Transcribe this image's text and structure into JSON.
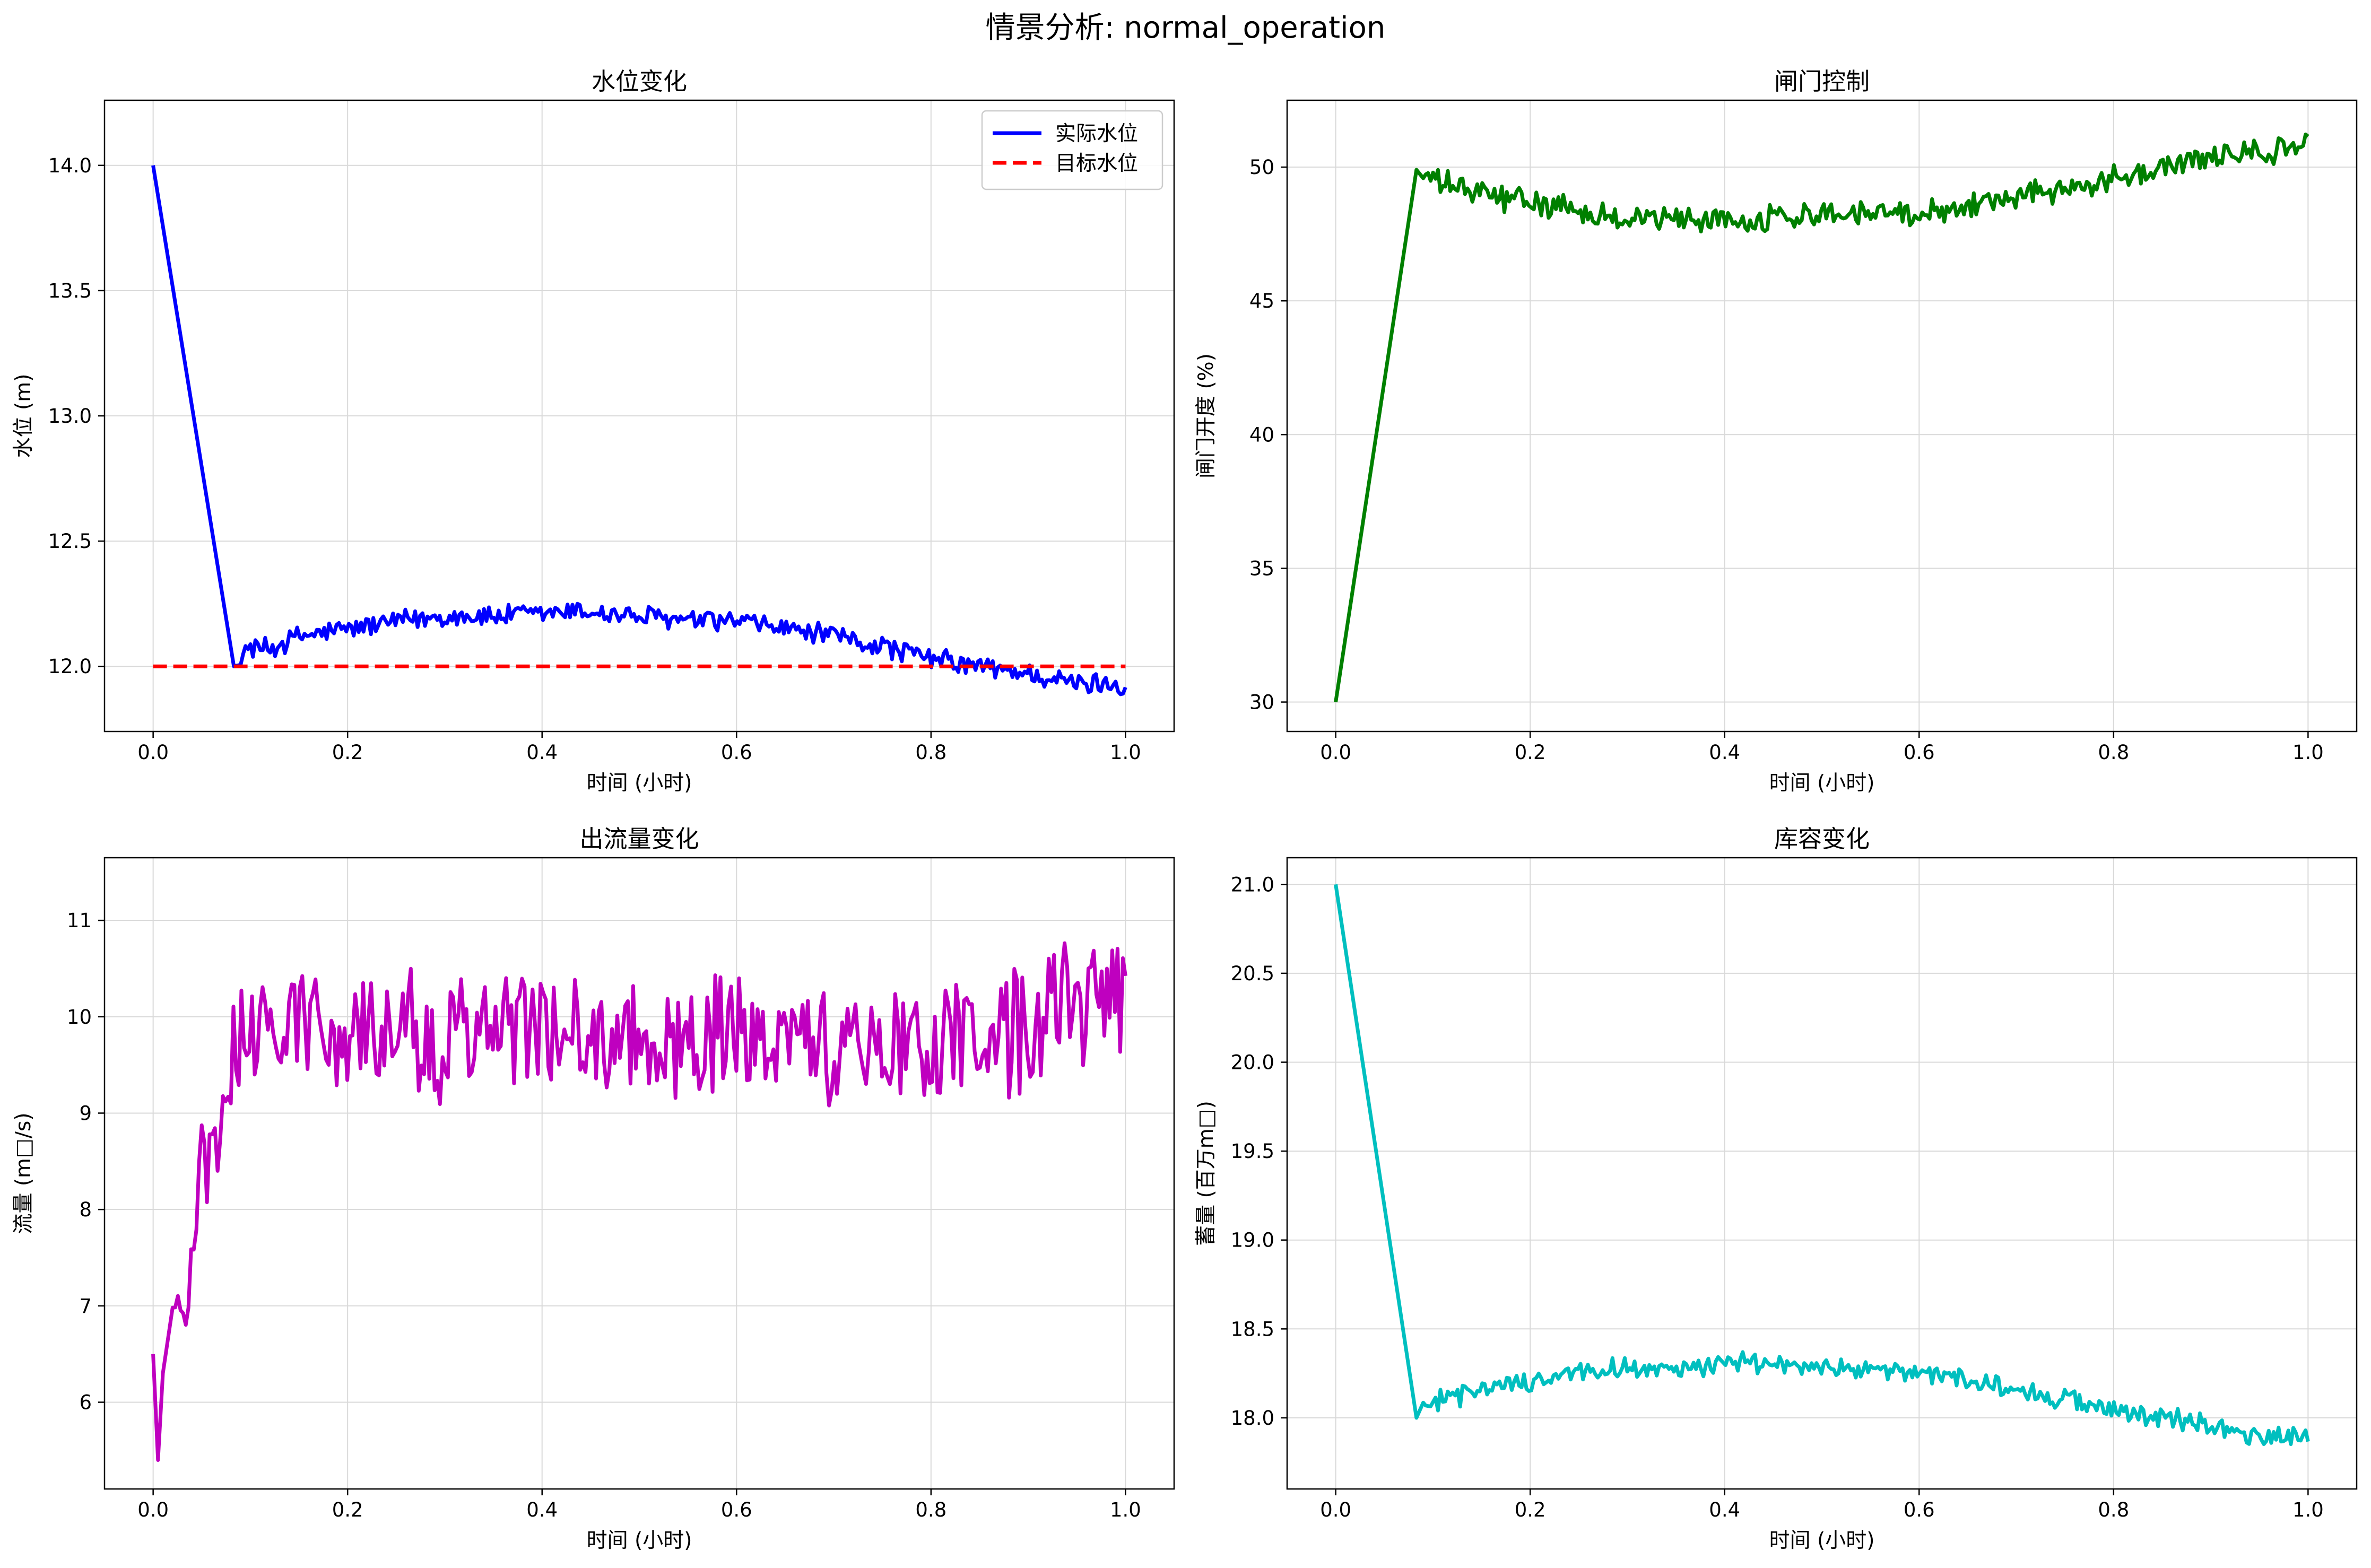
{
  "figure": {
    "suptitle": "情景分析: normal_operation"
  },
  "chart_data": [
    {
      "type": "line",
      "title": "水位变化",
      "xlabel": "时间 (小时)",
      "ylabel": "水位 (m)",
      "xlim": [
        -0.05,
        1.05
      ],
      "ylim": [
        11.74,
        14.26
      ],
      "xticks": [
        0.0,
        0.2,
        0.4,
        0.6,
        0.8,
        1.0
      ],
      "yticks": [
        12.0,
        12.5,
        13.0,
        13.5,
        14.0
      ],
      "xtick_labels": [
        "0.0",
        "0.2",
        "0.4",
        "0.6",
        "0.8",
        "1.0"
      ],
      "ytick_labels": [
        "12.0",
        "12.5",
        "13.0",
        "13.5",
        "14.0"
      ],
      "grid": true,
      "legend_position": "top-right",
      "series": [
        {
          "name": "实际水位",
          "color": "#0000ff",
          "style": "solid",
          "x": [
            0.0,
            0.083,
            0.1,
            0.12,
            0.15,
            0.2,
            0.25,
            0.3,
            0.35,
            0.4,
            0.44,
            0.5,
            0.55,
            0.6,
            0.65,
            0.7,
            0.75,
            0.8,
            0.85,
            0.9,
            0.95,
            1.0
          ],
          "y": [
            14.0,
            12.0,
            12.08,
            12.07,
            12.12,
            12.15,
            12.18,
            12.2,
            12.2,
            12.21,
            12.22,
            12.2,
            12.18,
            12.18,
            12.15,
            12.12,
            12.08,
            12.03,
            12.0,
            11.97,
            11.93,
            11.93
          ]
        },
        {
          "name": "目标水位",
          "color": "#ff0000",
          "style": "dashed",
          "x": [
            0.0,
            1.0
          ],
          "y": [
            12.0,
            12.0
          ]
        }
      ],
      "noise": {
        "amplitude": 0.05,
        "start_x": 0.09,
        "points": 360
      }
    },
    {
      "type": "line",
      "title": "闸门控制",
      "xlabel": "时间 (小时)",
      "ylabel": "闸门开度 (%)",
      "xlim": [
        -0.05,
        1.05
      ],
      "ylim": [
        28.9,
        52.5
      ],
      "xticks": [
        0.0,
        0.2,
        0.4,
        0.6,
        0.8,
        1.0
      ],
      "yticks": [
        30,
        35,
        40,
        45,
        50
      ],
      "xtick_labels": [
        "0.0",
        "0.2",
        "0.4",
        "0.6",
        "0.8",
        "1.0"
      ],
      "ytick_labels": [
        "30",
        "35",
        "40",
        "45",
        "50"
      ],
      "grid": true,
      "series": [
        {
          "color": "#008000",
          "style": "solid",
          "x": [
            0.0,
            0.083,
            0.1,
            0.15,
            0.2,
            0.25,
            0.3,
            0.35,
            0.4,
            0.45,
            0.5,
            0.55,
            0.6,
            0.65,
            0.7,
            0.75,
            0.8,
            0.85,
            0.9,
            0.95,
            1.0
          ],
          "y": [
            30.0,
            49.9,
            49.5,
            49.0,
            48.7,
            48.3,
            48.1,
            48.1,
            48.0,
            48.1,
            48.3,
            48.3,
            48.3,
            48.6,
            48.9,
            49.2,
            49.6,
            50.0,
            50.3,
            50.6,
            50.8
          ]
        }
      ],
      "noise": {
        "amplitude": 0.55,
        "start_x": 0.09,
        "points": 360
      }
    },
    {
      "type": "line",
      "title": "出流量变化",
      "xlabel": "时间 (小时)",
      "ylabel": "流量 (m□/s)",
      "xlim": [
        -0.05,
        1.05
      ],
      "ylim": [
        5.1,
        11.65
      ],
      "xticks": [
        0.0,
        0.2,
        0.4,
        0.6,
        0.8,
        1.0
      ],
      "yticks": [
        6,
        7,
        8,
        9,
        10,
        11
      ],
      "xtick_labels": [
        "0.0",
        "0.2",
        "0.4",
        "0.6",
        "0.8",
        "1.0"
      ],
      "ytick_labels": [
        "6",
        "7",
        "8",
        "9",
        "10",
        "11"
      ],
      "grid": true,
      "series": [
        {
          "color": "#bf00bf",
          "style": "solid",
          "x": [
            0.0,
            0.005,
            0.01,
            0.02,
            0.03,
            0.04,
            0.05,
            0.06,
            0.07,
            0.08,
            0.1,
            0.12,
            0.15,
            0.2,
            0.3,
            0.4,
            0.5,
            0.6,
            0.7,
            0.8,
            0.9,
            0.95,
            1.0
          ],
          "y": [
            6.5,
            5.4,
            6.3,
            6.8,
            7.2,
            7.6,
            8.2,
            8.8,
            9.1,
            9.6,
            9.9,
            10.0,
            10.0,
            9.8,
            9.8,
            9.9,
            9.7,
            9.8,
            9.7,
            9.7,
            9.9,
            10.1,
            10.3
          ]
        }
      ],
      "noise": {
        "amplitude": 0.75,
        "start_x": 0.02,
        "points": 360
      }
    },
    {
      "type": "line",
      "title": "库容变化",
      "xlabel": "时间 (小时)",
      "ylabel": "蓄量 (百万m□)",
      "xlim": [
        -0.05,
        1.05
      ],
      "ylim": [
        17.6,
        21.15
      ],
      "xticks": [
        0.0,
        0.2,
        0.4,
        0.6,
        0.8,
        1.0
      ],
      "yticks": [
        18.0,
        18.5,
        19.0,
        19.5,
        20.0,
        20.5,
        21.0
      ],
      "xtick_labels": [
        "0.0",
        "0.2",
        "0.4",
        "0.6",
        "0.8",
        "1.0"
      ],
      "ytick_labels": [
        "18.0",
        "18.5",
        "19.0",
        "19.5",
        "20.0",
        "20.5",
        "21.0"
      ],
      "grid": true,
      "series": [
        {
          "color": "#00bfbf",
          "style": "solid",
          "x": [
            0.0,
            0.083,
            0.1,
            0.12,
            0.15,
            0.2,
            0.25,
            0.3,
            0.35,
            0.4,
            0.44,
            0.5,
            0.55,
            0.6,
            0.65,
            0.7,
            0.75,
            0.8,
            0.85,
            0.9,
            0.95,
            1.0
          ],
          "y": [
            21.0,
            18.0,
            18.1,
            18.1,
            18.17,
            18.21,
            18.26,
            18.28,
            18.28,
            18.3,
            18.31,
            18.28,
            18.26,
            18.25,
            18.21,
            18.17,
            18.11,
            18.04,
            18.0,
            17.96,
            17.9,
            17.9
          ]
        }
      ],
      "noise": {
        "amplitude": 0.07,
        "start_x": 0.09,
        "points": 360
      }
    }
  ]
}
